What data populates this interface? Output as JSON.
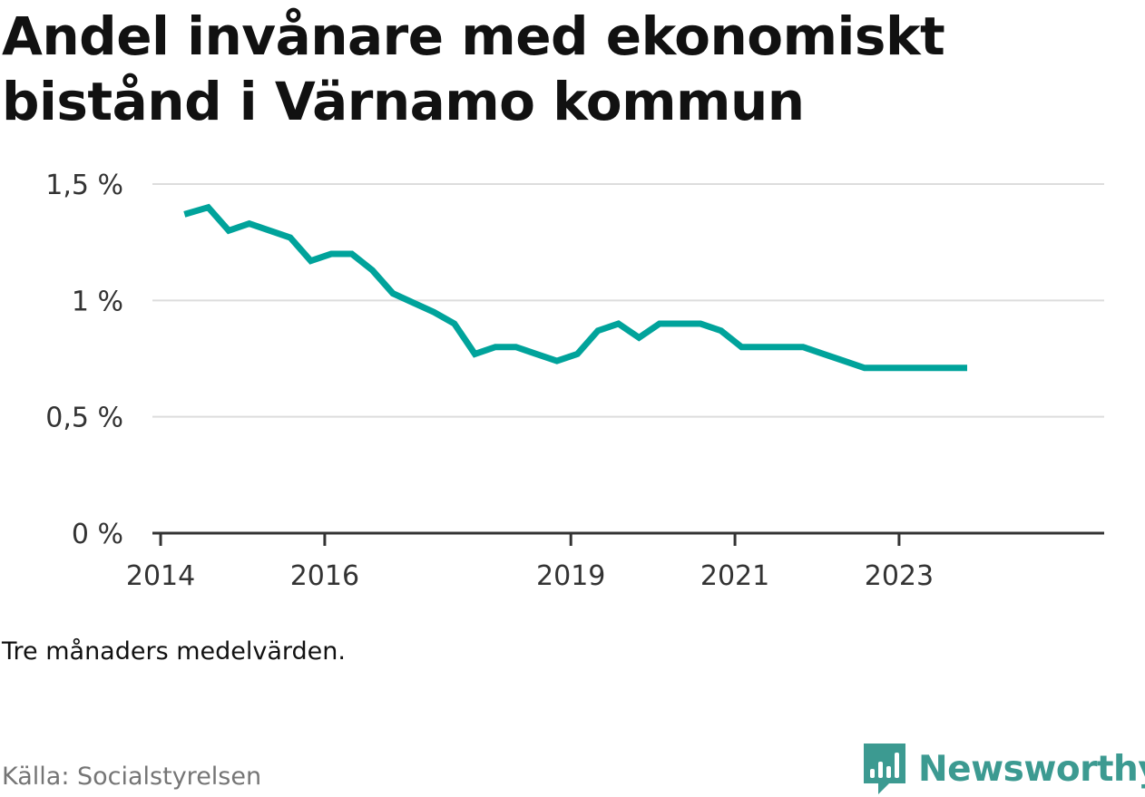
{
  "colors": {
    "line": "#00a39b",
    "brand": "#3c9a91",
    "text": "#111111",
    "muted": "#757575",
    "grid": "#dddddd",
    "axis": "#333333"
  },
  "title": "Andel invånare med ekonomiskt bistånd i Värnamo kommun",
  "note": "Tre månaders medelvärden.",
  "source": "Källa: Socialstyrelsen",
  "brand": {
    "name": "Newsworthy",
    "icon": "newsworthy-logo-icon"
  },
  "chart_data": {
    "type": "line",
    "title": "Andel invånare med ekonomiskt bistånd i Värnamo kommun",
    "xlabel": "",
    "ylabel": "",
    "xlim": [
      2013.9,
      2025.5
    ],
    "ylim": [
      0,
      1.5
    ],
    "yticks": [
      {
        "value": 0,
        "label": "0 %"
      },
      {
        "value": 0.5,
        "label": "0,5 %"
      },
      {
        "value": 1,
        "label": "1 %"
      },
      {
        "value": 1.5,
        "label": "1,5 %"
      }
    ],
    "xticks": [
      {
        "value": 2014,
        "label": "2014"
      },
      {
        "value": 2016,
        "label": "2016"
      },
      {
        "value": 2019,
        "label": "2019"
      },
      {
        "value": 2021,
        "label": "2021"
      },
      {
        "value": 2023,
        "label": "2023"
      }
    ],
    "grid": true,
    "series": [
      {
        "name": "Andel invånare med ekonomiskt bistånd",
        "x": [
          2014.29,
          2014.58,
          2014.83,
          2015.08,
          2015.33,
          2015.58,
          2015.83,
          2016.08,
          2016.33,
          2016.58,
          2016.83,
          2017.08,
          2017.33,
          2017.58,
          2017.83,
          2018.08,
          2018.33,
          2018.58,
          2018.83,
          2019.08,
          2019.33,
          2019.58,
          2019.83,
          2020.08,
          2020.33,
          2020.58,
          2020.83,
          2021.08,
          2021.33,
          2021.58,
          2021.83,
          2022.08,
          2022.33,
          2022.58,
          2022.83,
          2023.08,
          2023.33,
          2023.58,
          2023.83
        ],
        "values": [
          1.37,
          1.4,
          1.3,
          1.33,
          1.3,
          1.27,
          1.17,
          1.2,
          1.2,
          1.13,
          1.03,
          0.99,
          0.95,
          0.9,
          0.77,
          0.8,
          0.8,
          0.77,
          0.74,
          0.77,
          0.87,
          0.9,
          0.84,
          0.9,
          0.9,
          0.9,
          0.87,
          0.8,
          0.8,
          0.8,
          0.8,
          0.77,
          0.74,
          0.71,
          0.71,
          0.71,
          0.71,
          0.71,
          0.71
        ]
      }
    ]
  }
}
